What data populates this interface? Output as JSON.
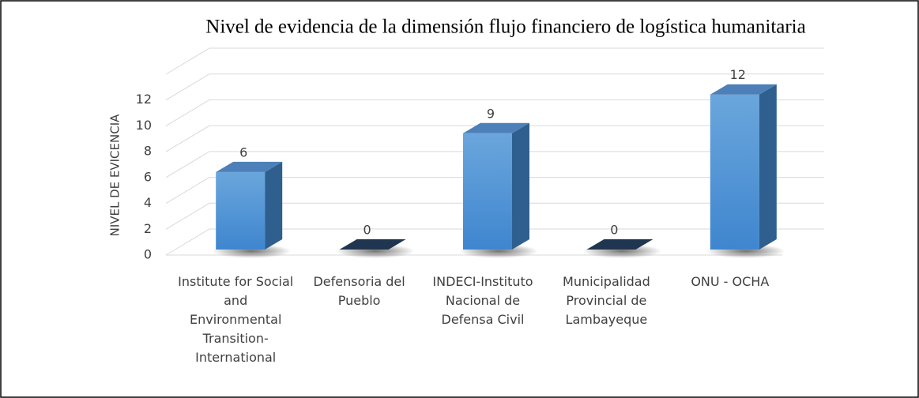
{
  "chart_data": {
    "type": "bar3d",
    "title": "Nivel de evidencia de la dimensión flujo financiero de logística humanitaria",
    "y_label": "NIVEL DE EVICENCIA",
    "categories": [
      "Institute for Social and Environmental Transition-International",
      "Defensoria del Pueblo",
      "INDECI-Instituto Nacional de Defensa Civil",
      "Municipalidad Provincial de Lambayeque",
      "ONU - OCHA"
    ],
    "values": [
      6,
      0,
      9,
      0,
      12
    ],
    "color": "#5b9bd5",
    "ylim": [
      0,
      14
    ],
    "yticks": [
      0,
      2,
      4,
      6,
      8,
      10,
      12
    ],
    "grid": true
  }
}
